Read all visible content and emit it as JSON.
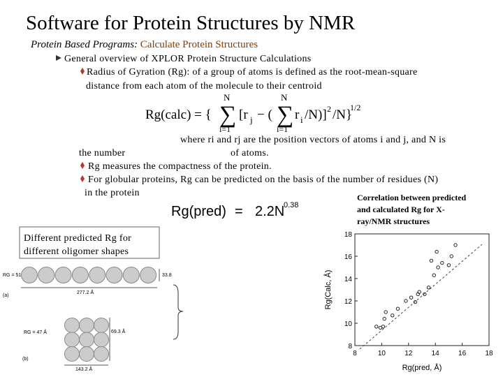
{
  "title": "Software for Protein Structures by NMR",
  "subtitle": {
    "label": "Protein Based Programs:",
    "topic": "Calculate Protein Structures"
  },
  "bullet": "General overview of XPLOR Protein Structure Calculations",
  "gyration": [
    "Radius of Gyration (Rg): of a group of atoms is defined as the root-mean-square",
    "distance from each atom of the molecule to their centroid"
  ],
  "equation_calc": {
    "lhs": "Rg(calc) = {",
    "sum": "∑",
    "upper": "N",
    "lower": "i=1",
    "open": "[r",
    "j": "j",
    "minus": "− (",
    "r": "r",
    "i": "i",
    "close": "/N)]",
    "square": "2",
    "divide": "/N}",
    "root": "1/2"
  },
  "where": [
    "where ri and rj are the position vectors of atoms i and j, and N is",
    "the number",
    "of atoms."
  ],
  "compactness": "Rg measures the compactness of the protein.",
  "globular": [
    "For globular proteins, Rg can be predicted on the basis of the number of residues (N)",
    "in the protein"
  ],
  "equation_pred": {
    "lhs": "Rg(pred)",
    "eq": "=",
    "rhs": "2.2N",
    "exp": "0.38"
  },
  "caption": [
    "Correlation between predicted",
    "and calculated Rg for X-",
    "ray/NMR structures"
  ],
  "box": [
    "Different predicted Rg for",
    "different oligomer shapes"
  ],
  "oligomers": {
    "a": {
      "rg": "RG = 51 Å",
      "height": "33.8",
      "length": "277.2 Å",
      "tag": "(a)"
    },
    "b": {
      "rg": "RG = 47 Å",
      "height": "69.3 Å",
      "length": "143.2 Å",
      "tag": "(b)"
    }
  },
  "figure": {
    "xlabel": "Rg(pred, Å)",
    "ylabel": "Rg(Calc, Å)",
    "xlim": [
      8,
      18
    ],
    "ylim": [
      8,
      18
    ],
    "xticks": [
      8,
      10,
      12,
      14,
      16,
      18
    ],
    "yticks": [
      8,
      10,
      12,
      14,
      16,
      18
    ],
    "points": {
      "x": [
        9.6,
        9.9,
        10.1,
        10.2,
        10.3,
        10.8,
        11.2,
        11.8,
        12.2,
        12.5,
        12.7,
        12.8,
        13.2,
        13.5,
        13.9,
        14.1,
        13.7,
        14.2,
        15.2,
        15.5,
        15.0,
        14.5
      ],
      "y": [
        9.7,
        9.6,
        9.7,
        10.4,
        11.0,
        10.7,
        11.3,
        12.0,
        12.3,
        11.9,
        12.6,
        12.8,
        12.6,
        13.2,
        14.3,
        16.4,
        15.6,
        15.0,
        16.0,
        17.0,
        15.2,
        15.4
      ]
    }
  }
}
